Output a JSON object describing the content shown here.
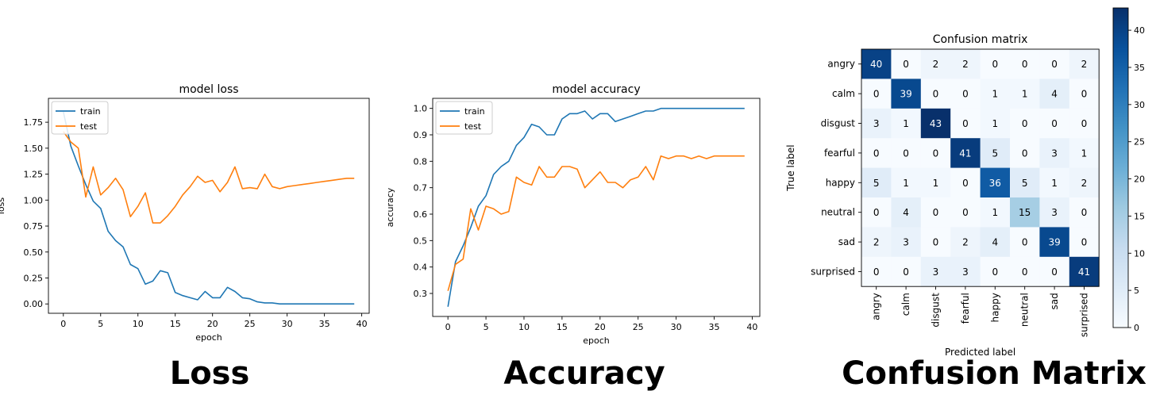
{
  "captions": {
    "loss": "Loss",
    "accuracy": "Accuracy",
    "confusion": "Confusion Matrix"
  },
  "colors": {
    "train": "#1f77b4",
    "test": "#ff7f0e",
    "cmap_low": "#f7fbff",
    "cmap_high": "#08306b"
  },
  "chart_data": [
    {
      "type": "line",
      "title": "model loss",
      "xlabel": "epoch",
      "ylabel": "loss",
      "xlim": [
        -2,
        41
      ],
      "ylim": [
        -0.09,
        1.98
      ],
      "xticks": [
        0,
        5,
        10,
        15,
        20,
        25,
        30,
        35,
        40
      ],
      "yticks": [
        0.0,
        0.25,
        0.5,
        0.75,
        1.0,
        1.25,
        1.5,
        1.75
      ],
      "ytick_labels": [
        "0.00",
        "0.25",
        "0.50",
        "0.75",
        "1.00",
        "1.25",
        "1.50",
        "1.75"
      ],
      "legend": "upper-left",
      "grid": false,
      "series": [
        {
          "name": "train",
          "values": [
            1.85,
            1.52,
            1.33,
            1.15,
            0.99,
            0.92,
            0.7,
            0.61,
            0.55,
            0.38,
            0.34,
            0.19,
            0.22,
            0.32,
            0.3,
            0.11,
            0.08,
            0.06,
            0.04,
            0.12,
            0.06,
            0.06,
            0.16,
            0.12,
            0.06,
            0.05,
            0.02,
            0.01,
            0.01,
            0.0,
            0.0,
            0.0,
            0.0,
            0.0,
            0.0,
            0.0,
            0.0,
            0.0,
            0.0,
            0.0
          ]
        },
        {
          "name": "test",
          "values": [
            1.66,
            1.56,
            1.5,
            1.03,
            1.32,
            1.05,
            1.12,
            1.21,
            1.1,
            0.84,
            0.94,
            1.07,
            0.78,
            0.78,
            0.85,
            0.94,
            1.05,
            1.13,
            1.23,
            1.17,
            1.19,
            1.08,
            1.17,
            1.32,
            1.11,
            1.12,
            1.11,
            1.25,
            1.13,
            1.11,
            1.13,
            1.14,
            1.15,
            1.16,
            1.17,
            1.18,
            1.19,
            1.2,
            1.21,
            1.21
          ]
        }
      ]
    },
    {
      "type": "line",
      "title": "model accuracy",
      "xlabel": "epoch",
      "ylabel": "accuracy",
      "xlim": [
        -2,
        41
      ],
      "ylim": [
        0.213,
        1.038
      ],
      "xticks": [
        0,
        5,
        10,
        15,
        20,
        25,
        30,
        35,
        40
      ],
      "yticks": [
        0.3,
        0.4,
        0.5,
        0.6,
        0.7,
        0.8,
        0.9,
        1.0
      ],
      "ytick_labels": [
        "0.3",
        "0.4",
        "0.5",
        "0.6",
        "0.7",
        "0.8",
        "0.9",
        "1.0"
      ],
      "legend": "upper-left",
      "grid": false,
      "series": [
        {
          "name": "train",
          "values": [
            0.25,
            0.42,
            0.48,
            0.55,
            0.63,
            0.67,
            0.75,
            0.78,
            0.8,
            0.86,
            0.89,
            0.94,
            0.93,
            0.9,
            0.9,
            0.96,
            0.98,
            0.98,
            0.99,
            0.96,
            0.98,
            0.98,
            0.95,
            0.96,
            0.97,
            0.98,
            0.99,
            0.99,
            1.0,
            1.0,
            1.0,
            1.0,
            1.0,
            1.0,
            1.0,
            1.0,
            1.0,
            1.0,
            1.0,
            1.0
          ]
        },
        {
          "name": "test",
          "values": [
            0.31,
            0.41,
            0.43,
            0.62,
            0.54,
            0.63,
            0.62,
            0.6,
            0.61,
            0.74,
            0.72,
            0.71,
            0.78,
            0.74,
            0.74,
            0.78,
            0.78,
            0.77,
            0.7,
            0.73,
            0.76,
            0.72,
            0.72,
            0.7,
            0.73,
            0.74,
            0.78,
            0.73,
            0.82,
            0.81,
            0.82,
            0.82,
            0.81,
            0.82,
            0.81,
            0.82,
            0.82,
            0.82,
            0.82,
            0.82
          ]
        }
      ]
    },
    {
      "type": "heatmap",
      "title": "Confusion matrix",
      "xlabel": "Predicted label",
      "ylabel": "True label",
      "labels": [
        "angry",
        "calm",
        "disgust",
        "fearful",
        "happy",
        "neutral",
        "sad",
        "surprised"
      ],
      "matrix": [
        [
          40,
          0,
          2,
          2,
          0,
          0,
          0,
          2
        ],
        [
          0,
          39,
          0,
          0,
          1,
          1,
          4,
          0
        ],
        [
          3,
          1,
          43,
          0,
          1,
          0,
          0,
          0
        ],
        [
          0,
          0,
          0,
          41,
          5,
          0,
          3,
          1
        ],
        [
          5,
          1,
          1,
          0,
          36,
          5,
          1,
          2
        ],
        [
          0,
          4,
          0,
          0,
          1,
          15,
          3,
          0
        ],
        [
          2,
          3,
          0,
          2,
          4,
          0,
          39,
          0
        ],
        [
          0,
          0,
          3,
          3,
          0,
          0,
          0,
          41
        ]
      ],
      "colorbar": {
        "min": 0,
        "max": 43,
        "ticks": [
          0,
          5,
          10,
          15,
          20,
          25,
          30,
          35,
          40
        ]
      }
    }
  ]
}
